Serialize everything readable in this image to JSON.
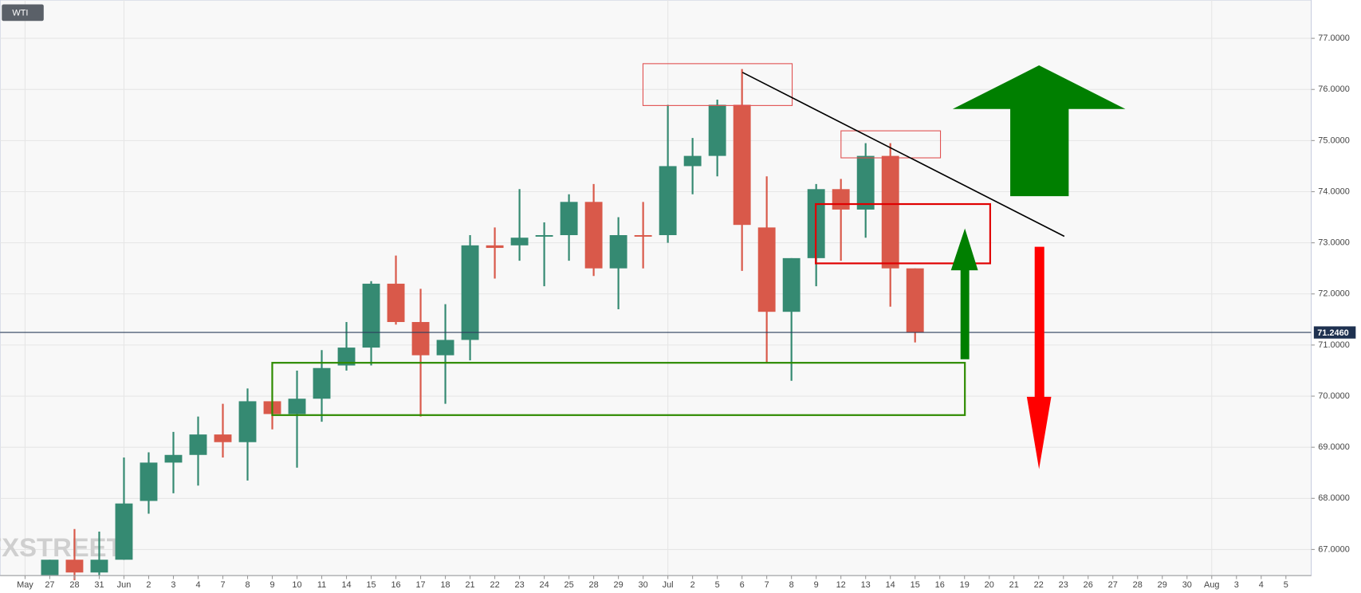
{
  "chart_data": {
    "type": "candlestick",
    "title": "WTI",
    "watermark": "FXSTREET",
    "categories": [
      "May",
      "27",
      "28",
      "31",
      "Jun",
      "2",
      "3",
      "4",
      "7",
      "8",
      "9",
      "10",
      "11",
      "14",
      "15",
      "16",
      "17",
      "18",
      "21",
      "22",
      "23",
      "24",
      "25",
      "28",
      "29",
      "30",
      "Jul",
      "2",
      "5",
      "6",
      "7",
      "8",
      "9",
      "12",
      "13",
      "14",
      "15",
      "16",
      "19",
      "20",
      "21",
      "22",
      "23",
      "26",
      "27",
      "28",
      "29",
      "30",
      "Aug",
      "3",
      "4",
      "5"
    ],
    "open": [
      null,
      66.5,
      66.8,
      66.55,
      66.8,
      67.95,
      68.7,
      68.85,
      69.25,
      69.1,
      69.9,
      69.65,
      69.95,
      70.6,
      70.95,
      72.2,
      71.45,
      70.8,
      71.1,
      72.95,
      72.95,
      73.12,
      73.15,
      73.8,
      72.5,
      73.15,
      73.15,
      74.5,
      74.7,
      75.7,
      73.3,
      71.65,
      72.7,
      74.05,
      73.65,
      74.7,
      72.5,
      null,
      null,
      null,
      null,
      null,
      null,
      null,
      null,
      null,
      null,
      null,
      null,
      null,
      null,
      null
    ],
    "high": [
      null,
      66.8,
      67.4,
      67.35,
      68.8,
      68.9,
      69.3,
      69.6,
      69.85,
      70.15,
      69.9,
      70.5,
      70.9,
      71.45,
      72.25,
      72.75,
      72.1,
      71.8,
      73.15,
      73.3,
      74.05,
      73.4,
      73.95,
      74.15,
      73.5,
      73.8,
      75.7,
      75.05,
      75.8,
      76.4,
      74.3,
      72.7,
      74.15,
      74.25,
      74.95,
      74.95,
      72.5,
      null,
      null,
      null,
      null,
      null,
      null,
      null,
      null,
      null,
      null,
      null,
      null,
      null,
      null,
      null
    ],
    "low": [
      null,
      66.5,
      66.4,
      66.5,
      66.8,
      67.7,
      68.1,
      68.25,
      68.8,
      68.35,
      69.35,
      68.6,
      69.5,
      70.5,
      70.6,
      71.4,
      69.6,
      69.85,
      70.7,
      72.3,
      72.65,
      72.15,
      72.65,
      72.35,
      71.7,
      72.5,
      73.0,
      73.95,
      74.3,
      72.45,
      70.65,
      70.3,
      72.15,
      72.65,
      73.1,
      71.75,
      71.05,
      null,
      null,
      null,
      null,
      null,
      null,
      null,
      null,
      null,
      null,
      null,
      null,
      null,
      null,
      null
    ],
    "close": [
      null,
      66.8,
      66.55,
      66.8,
      67.9,
      68.7,
      68.85,
      69.25,
      69.1,
      69.9,
      69.65,
      69.95,
      70.55,
      70.95,
      72.2,
      71.45,
      70.8,
      71.1,
      72.95,
      72.9,
      73.1,
      73.15,
      73.8,
      72.5,
      73.15,
      73.12,
      74.5,
      74.7,
      75.7,
      73.35,
      71.65,
      72.7,
      74.05,
      73.65,
      74.7,
      72.5,
      71.25,
      null,
      null,
      null,
      null,
      null,
      null,
      null,
      null,
      null,
      null,
      null,
      null,
      null,
      null,
      null
    ],
    "up_color": "#358a72",
    "down_color": "#d9594a",
    "last_price": {
      "value": 71.246,
      "label": "71.2460"
    },
    "ylim": [
      66.49,
      77.75
    ],
    "yticks": [
      {
        "value": 67,
        "label": "67.0000"
      },
      {
        "value": 68,
        "label": "68.0000"
      },
      {
        "value": 69,
        "label": "69.0000"
      },
      {
        "value": 70,
        "label": "70.0000"
      },
      {
        "value": 71,
        "label": "71.0000"
      },
      {
        "value": 72,
        "label": "72.0000"
      },
      {
        "value": 73,
        "label": "73.0000"
      },
      {
        "value": 74,
        "label": "74.0000"
      },
      {
        "value": 75,
        "label": "75.0000"
      },
      {
        "value": 76,
        "label": "76.0000"
      },
      {
        "value": 77,
        "label": "77.0000"
      }
    ],
    "grid": true
  }
}
